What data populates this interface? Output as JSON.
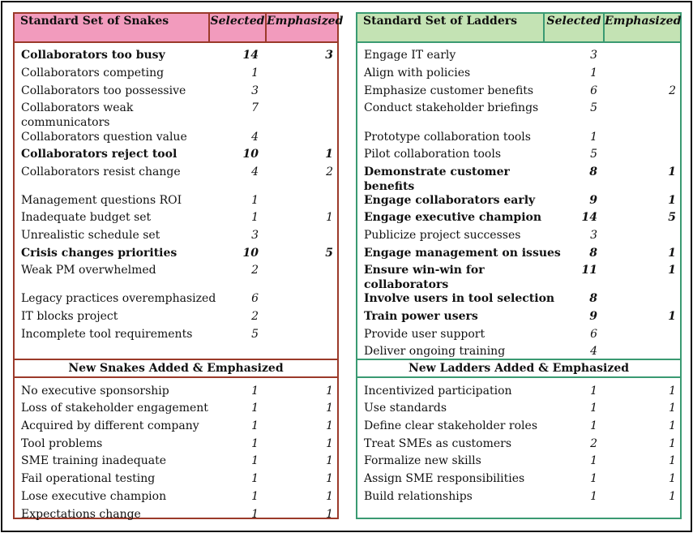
{
  "snakes": {
    "title": "Standard Set of Snakes",
    "selected_header": "Selected",
    "emphasized_header": "Emphasized",
    "rows": [
      {
        "label": "Collaborators too busy",
        "selected": "14",
        "emphasized": "3",
        "bold": true
      },
      {
        "label": "Collaborators competing",
        "selected": "1",
        "emphasized": "",
        "bold": false
      },
      {
        "label": "Collaborators too possessive",
        "selected": "3",
        "emphasized": "",
        "bold": false
      },
      {
        "label": "Collaborators weak communicators",
        "selected": "7",
        "emphasized": "",
        "bold": false
      },
      {
        "label": "Collaborators question value",
        "selected": "4",
        "emphasized": "",
        "bold": false
      },
      {
        "label": "Collaborators reject tool",
        "selected": "10",
        "emphasized": "1",
        "bold": true
      },
      {
        "label": "Collaborators resist change",
        "selected": "4",
        "emphasized": "2",
        "bold": false
      },
      {
        "label": "Management questions ROI",
        "selected": "1",
        "emphasized": "",
        "bold": false
      },
      {
        "label": "Inadequate budget set",
        "selected": "1",
        "emphasized": "1",
        "bold": false
      },
      {
        "label": "Unrealistic schedule set",
        "selected": "3",
        "emphasized": "",
        "bold": false
      },
      {
        "label": "Crisis changes priorities",
        "selected": "10",
        "emphasized": "5",
        "bold": true
      },
      {
        "label": "Weak PM overwhelmed",
        "selected": "2",
        "emphasized": "",
        "bold": false
      },
      {
        "label": "Legacy practices overemphasized",
        "selected": "6",
        "emphasized": "",
        "bold": false
      },
      {
        "label": "IT blocks project",
        "selected": "2",
        "emphasized": "",
        "bold": false
      },
      {
        "label": "Incomplete tool requirements",
        "selected": "5",
        "emphasized": "",
        "bold": false
      }
    ],
    "new_title": "New Snakes Added & Emphasized",
    "new_rows": [
      {
        "label": "No executive sponsorship",
        "selected": "1",
        "emphasized": "1"
      },
      {
        "label": "Loss of stakeholder engagement",
        "selected": "1",
        "emphasized": "1"
      },
      {
        "label": "Acquired by different company",
        "selected": "1",
        "emphasized": "1"
      },
      {
        "label": "Tool problems",
        "selected": "1",
        "emphasized": "1"
      },
      {
        "label": "SME training inadequate",
        "selected": "1",
        "emphasized": "1"
      },
      {
        "label": "Fail operational testing",
        "selected": "1",
        "emphasized": "1"
      },
      {
        "label": "Lose executive champion",
        "selected": "1",
        "emphasized": "1"
      },
      {
        "label": "Expectations change",
        "selected": "1",
        "emphasized": "1"
      }
    ]
  },
  "ladders": {
    "title": "Standard Set of Ladders",
    "selected_header": "Selected",
    "emphasized_header": "Emphasized",
    "rows": [
      {
        "label": "Engage IT early",
        "selected": "3",
        "emphasized": "",
        "bold": false
      },
      {
        "label": "Align with policies",
        "selected": "1",
        "emphasized": "",
        "bold": false
      },
      {
        "label": "Emphasize customer benefits",
        "selected": "6",
        "emphasized": "2",
        "bold": false
      },
      {
        "label": "Conduct stakeholder briefings",
        "selected": "5",
        "emphasized": "",
        "bold": false
      },
      {
        "label": "Prototype collaboration tools",
        "selected": "1",
        "emphasized": "",
        "bold": false
      },
      {
        "label": "Pilot collaboration tools",
        "selected": "5",
        "emphasized": "",
        "bold": false
      },
      {
        "label": "Demonstrate customer benefits",
        "selected": "8",
        "emphasized": "1",
        "bold": true
      },
      {
        "label": "Engage collaborators early",
        "selected": "9",
        "emphasized": "1",
        "bold": true
      },
      {
        "label": "Engage executive champion",
        "selected": "14",
        "emphasized": "5",
        "bold": true
      },
      {
        "label": "Publicize project successes",
        "selected": "3",
        "emphasized": "",
        "bold": false
      },
      {
        "label": "Engage management on issues",
        "selected": "8",
        "emphasized": "1",
        "bold": true
      },
      {
        "label": "Ensure win-win for collaborators",
        "selected": "11",
        "emphasized": "1",
        "bold": true
      },
      {
        "label": "Involve users in tool selection",
        "selected": "8",
        "emphasized": "",
        "bold": true
      },
      {
        "label": "Train power users",
        "selected": "9",
        "emphasized": "1",
        "bold": true
      },
      {
        "label": "Provide user support",
        "selected": "6",
        "emphasized": "",
        "bold": false
      },
      {
        "label": "Deliver ongoing training",
        "selected": "4",
        "emphasized": "",
        "bold": false
      }
    ],
    "new_title": "New Ladders Added & Emphasized",
    "new_rows": [
      {
        "label": "Incentivized participation",
        "selected": "1",
        "emphasized": "1"
      },
      {
        "label": "Use standards",
        "selected": "1",
        "emphasized": "1"
      },
      {
        "label": "Define clear stakeholder roles",
        "selected": "1",
        "emphasized": "1"
      },
      {
        "label": "Treat SMEs as customers",
        "selected": "2",
        "emphasized": "1"
      },
      {
        "label": "Formalize new skills",
        "selected": "1",
        "emphasized": "1"
      },
      {
        "label": "Assign SME responsibilities",
        "selected": "1",
        "emphasized": "1"
      },
      {
        "label": "Build relationships",
        "selected": "1",
        "emphasized": "1"
      }
    ]
  }
}
